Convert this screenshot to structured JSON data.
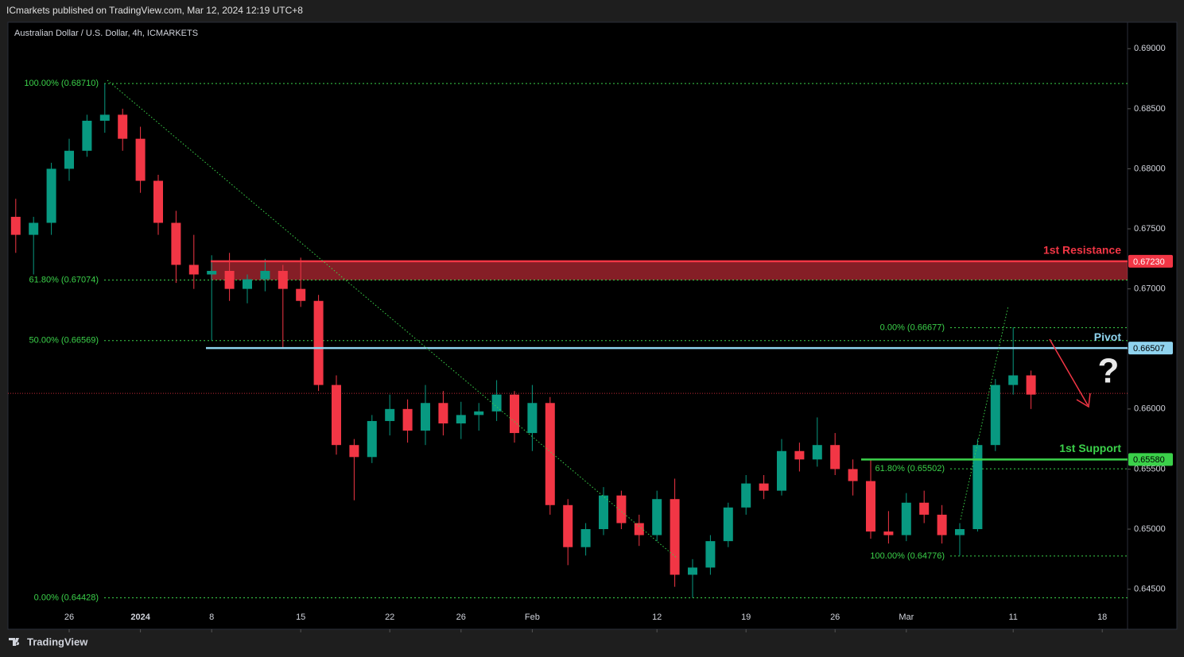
{
  "header": {
    "publisher": "ICmarkets published on TradingView.com, Mar 12, 2024 12:19 UTC+8",
    "footer": "TradingView"
  },
  "chart_data": {
    "type": "candlestick",
    "title": "Australian Dollar / U.S. Dollar, 4h, ICMARKETS",
    "up_color": "#089981",
    "down_color": "#f23645",
    "x": [
      -3,
      -2,
      -1,
      0,
      1,
      2,
      3,
      4,
      5,
      6,
      7,
      8,
      9,
      10,
      11,
      12,
      13,
      14,
      15,
      16,
      17,
      18,
      19,
      20,
      21,
      22,
      23,
      24,
      25,
      26,
      27,
      28,
      29,
      30,
      31,
      32,
      33,
      34,
      35,
      36,
      37,
      38,
      39,
      40,
      41,
      42,
      43,
      44,
      45,
      46,
      47,
      48,
      49,
      50,
      51,
      52,
      53,
      54
    ],
    "open": [
      0.676,
      0.6745,
      0.6755,
      0.68,
      0.6815,
      0.684,
      0.6845,
      0.6825,
      0.679,
      0.6755,
      0.672,
      0.6712,
      0.6715,
      0.67,
      0.6708,
      0.6715,
      0.67,
      0.669,
      0.662,
      0.657,
      0.656,
      0.659,
      0.66,
      0.6582,
      0.6605,
      0.6588,
      0.6595,
      0.6598,
      0.6612,
      0.658,
      0.6605,
      0.652,
      0.6485,
      0.65,
      0.6528,
      0.6505,
      0.6495,
      0.6525,
      0.6462,
      0.6468,
      0.649,
      0.6518,
      0.6538,
      0.6532,
      0.6565,
      0.6558,
      0.657,
      0.655,
      0.654,
      0.6498,
      0.6495,
      0.6522,
      0.6512,
      0.6495,
      0.65,
      0.657,
      0.662,
      0.6628
    ],
    "high": [
      0.6775,
      0.676,
      0.6805,
      0.6825,
      0.6845,
      0.6871,
      0.685,
      0.6835,
      0.6795,
      0.6765,
      0.6745,
      0.6728,
      0.673,
      0.6712,
      0.6725,
      0.672,
      0.6726,
      0.6695,
      0.6628,
      0.6575,
      0.6595,
      0.6612,
      0.6608,
      0.662,
      0.6615,
      0.6606,
      0.6605,
      0.6624,
      0.6615,
      0.662,
      0.661,
      0.6525,
      0.6505,
      0.6535,
      0.6532,
      0.6512,
      0.6532,
      0.6542,
      0.6475,
      0.6495,
      0.6522,
      0.6545,
      0.6545,
      0.6575,
      0.6572,
      0.6593,
      0.658,
      0.6558,
      0.6558,
      0.6515,
      0.653,
      0.6532,
      0.652,
      0.6505,
      0.6575,
      0.6625,
      0.6668,
      0.6632
    ],
    "low": [
      0.673,
      0.6712,
      0.6745,
      0.679,
      0.681,
      0.683,
      0.6815,
      0.678,
      0.6745,
      0.6705,
      0.67,
      0.6657,
      0.669,
      0.6688,
      0.6698,
      0.6651,
      0.6685,
      0.6615,
      0.6562,
      0.6524,
      0.6555,
      0.6578,
      0.6572,
      0.657,
      0.6578,
      0.6575,
      0.6582,
      0.659,
      0.6572,
      0.6565,
      0.6512,
      0.647,
      0.6478,
      0.6495,
      0.65,
      0.6486,
      0.649,
      0.6452,
      0.6443,
      0.6462,
      0.6485,
      0.6512,
      0.6525,
      0.6528,
      0.6548,
      0.6552,
      0.6545,
      0.6528,
      0.6492,
      0.6488,
      0.649,
      0.6505,
      0.6488,
      0.6478,
      0.6498,
      0.6565,
      0.6612,
      0.66
    ],
    "close": [
      0.6745,
      0.6755,
      0.68,
      0.6815,
      0.684,
      0.6845,
      0.6825,
      0.679,
      0.6755,
      0.672,
      0.6712,
      0.6715,
      0.67,
      0.6708,
      0.6715,
      0.67,
      0.669,
      0.662,
      0.657,
      0.656,
      0.659,
      0.66,
      0.6582,
      0.6605,
      0.6588,
      0.6595,
      0.6598,
      0.6612,
      0.658,
      0.6605,
      0.652,
      0.6485,
      0.65,
      0.6528,
      0.6505,
      0.6495,
      0.6525,
      0.6462,
      0.6468,
      0.649,
      0.6518,
      0.6538,
      0.6532,
      0.6565,
      0.6558,
      0.657,
      0.655,
      0.654,
      0.6498,
      0.6495,
      0.6522,
      0.6512,
      0.6495,
      0.65,
      0.657,
      0.662,
      0.6628,
      0.6612
    ],
    "xlim": [
      -3.4375,
      59.42
    ],
    "xticks": [
      {
        "value": 0,
        "label": "26"
      },
      {
        "value": 4,
        "label": "2024"
      },
      {
        "value": 8,
        "label": "8"
      },
      {
        "value": 13,
        "label": "15"
      },
      {
        "value": 18,
        "label": "22"
      },
      {
        "value": 22,
        "label": "26"
      },
      {
        "value": 26,
        "label": "Feb"
      },
      {
        "value": 33,
        "label": "12"
      },
      {
        "value": 38,
        "label": "19"
      },
      {
        "value": 43,
        "label": "26"
      },
      {
        "value": 47,
        "label": "Mar"
      },
      {
        "value": 53,
        "label": "11"
      },
      {
        "value": 58,
        "label": "18"
      }
    ],
    "ylim": [
      0.6418,
      0.6922
    ],
    "yticks": [
      {
        "value": 0.69,
        "label": "0.69000"
      },
      {
        "value": 0.685,
        "label": "0.68500"
      },
      {
        "value": 0.68,
        "label": "0.68000"
      },
      {
        "value": 0.675,
        "label": "0.67500"
      },
      {
        "value": 0.67,
        "label": "0.67000"
      },
      {
        "value": 0.665,
        "label": "0.66500"
      },
      {
        "value": 0.66,
        "label": "0.66000"
      },
      {
        "value": 0.655,
        "label": "0.65500"
      },
      {
        "value": 0.65,
        "label": "0.65000"
      },
      {
        "value": 0.645,
        "label": "0.64500"
      }
    ],
    "last_price": 0.6613,
    "fib_left": [
      {
        "value": 0.6871,
        "label": "100.00% (0.68710)"
      },
      {
        "value": 0.67074,
        "label": "61.80% (0.67074)"
      },
      {
        "value": 0.66569,
        "label": "50.00% (0.66569)"
      },
      {
        "value": 0.64428,
        "label": "0.00% (0.64428)"
      }
    ],
    "fib_right": [
      {
        "value": 0.66677,
        "label": "0.00% (0.66677)"
      },
      {
        "value": 0.65502,
        "label": "61.80% (0.65502)"
      },
      {
        "value": 0.64776,
        "label": "100.00% (0.64776)"
      }
    ],
    "resistance": {
      "name": "1st Resistance",
      "value": 0.6723,
      "value_label": "0.67230",
      "zone_low": 0.67074,
      "color": "#f23645"
    },
    "pivot": {
      "name": "Pivot",
      "value": 0.66507,
      "value_label": "0.66507",
      "color": "#8fd3ee"
    },
    "support": {
      "name": "1st Support",
      "value": 0.6558,
      "value_label": "0.65580",
      "color": "#3bd14a"
    },
    "annotation": "?"
  }
}
